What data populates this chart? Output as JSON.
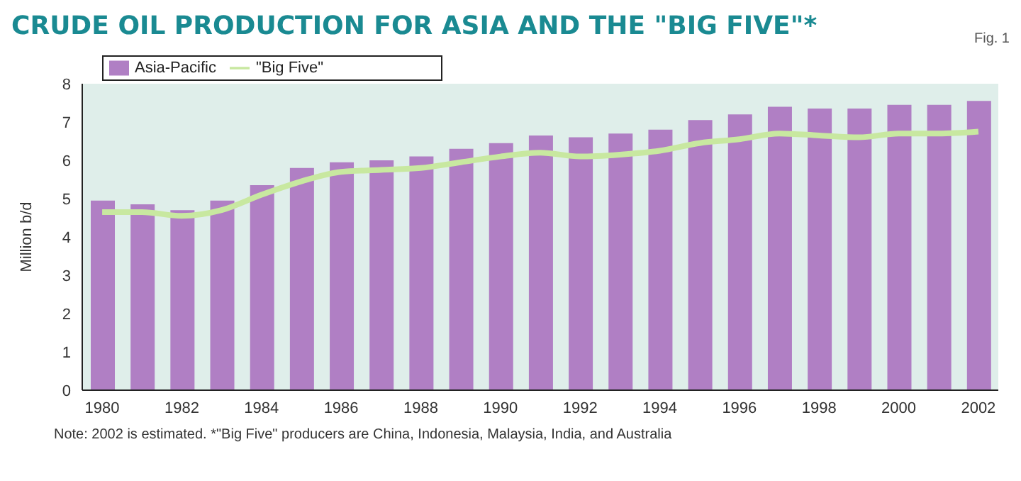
{
  "chart_data": {
    "type": "bar",
    "title": "CRUDE OIL PRODUCTION FOR ASIA AND THE \"BIG FIVE\"*",
    "ylabel": "Million b/d",
    "annotations": [
      "Fig. 1",
      "Note: 2002 is estimated. *\"Big Five\" producers are China, Indonesia, Malaysia, India, and Australia"
    ],
    "categories": [
      "1980",
      null,
      "1982",
      null,
      "1984",
      null,
      "1986",
      null,
      "1988",
      null,
      "1990",
      null,
      "1992",
      null,
      "1994",
      null,
      "1996",
      null,
      "1998",
      null,
      "2000",
      null,
      "2002"
    ],
    "series": [
      {
        "name": "Asia-Pacific",
        "color": "#b07fc4",
        "values": [
          4.95,
          4.85,
          4.7,
          4.95,
          5.35,
          5.8,
          5.95,
          6.0,
          6.1,
          6.3,
          6.45,
          6.65,
          6.6,
          6.7,
          6.8,
          7.05,
          7.2,
          7.4,
          7.35,
          7.35,
          7.45,
          7.45,
          7.55
        ]
      },
      {
        "name": "\"Big Five\"",
        "type": "line",
        "color": "#c8e8a0",
        "values": [
          4.65,
          4.65,
          4.55,
          4.7,
          5.1,
          5.45,
          5.7,
          5.75,
          5.8,
          5.95,
          6.1,
          6.2,
          6.1,
          6.15,
          6.25,
          6.45,
          6.55,
          6.7,
          6.65,
          6.6,
          6.7,
          6.7,
          6.75
        ]
      }
    ],
    "ylim": [
      0,
      8
    ],
    "yticks": [
      0,
      1,
      2,
      3,
      4,
      5,
      6,
      7,
      8
    ],
    "legend": "top left",
    "marker": "none"
  }
}
